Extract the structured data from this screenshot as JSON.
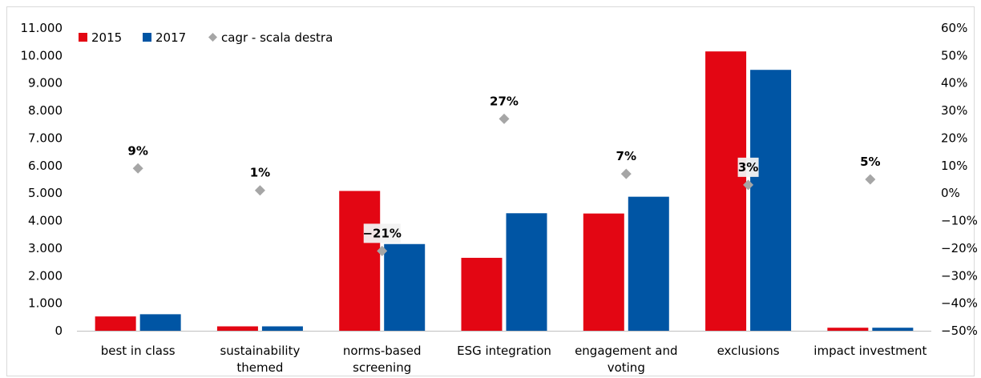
{
  "chart_data": {
    "type": "bar",
    "categories": [
      [
        "best in class"
      ],
      [
        "sustainability",
        "themed"
      ],
      [
        "norms-based",
        "screening"
      ],
      [
        "ESG integration"
      ],
      [
        "engagement and",
        "voting"
      ],
      [
        "exclusions"
      ],
      [
        "impact investment"
      ]
    ],
    "series": [
      {
        "name": "2015",
        "color": "#e30613",
        "values": [
          520,
          160,
          5080,
          2650,
          4260,
          10150,
          110
        ]
      },
      {
        "name": "2017",
        "color": "#0055a4",
        "values": [
          600,
          160,
          3150,
          4270,
          4870,
          9480,
          110
        ]
      }
    ],
    "line_series": {
      "name": "cagr - scala destra",
      "color": "#a6a6a6",
      "values": [
        9,
        1,
        -21,
        27,
        7,
        3,
        5
      ],
      "labels": [
        "9%",
        "1%",
        "-21%",
        "27%",
        "7%",
        "3%",
        "5%"
      ]
    },
    "y_left": {
      "ylim": [
        0,
        11000
      ],
      "ticks": [
        0,
        1000,
        2000,
        3000,
        4000,
        5000,
        6000,
        7000,
        8000,
        9000,
        10000,
        11000
      ],
      "tick_labels": [
        "0",
        "1.000",
        "2.000",
        "3.000",
        "4.000",
        "5.000",
        "6.000",
        "7.000",
        "8.000",
        "9.000",
        "10.000",
        "11.000"
      ]
    },
    "y_right": {
      "ylim": [
        -50,
        60
      ],
      "ticks": [
        -50,
        -40,
        -30,
        -20,
        -10,
        0,
        10,
        20,
        30,
        40,
        50,
        60
      ],
      "tick_labels": [
        "-50%",
        "-40%",
        "-30%",
        "-20%",
        "-10%",
        "0%",
        "10%",
        "20%",
        "30%",
        "40%",
        "50%",
        "60%"
      ]
    },
    "legend_position": "top-left",
    "grid": false
  }
}
